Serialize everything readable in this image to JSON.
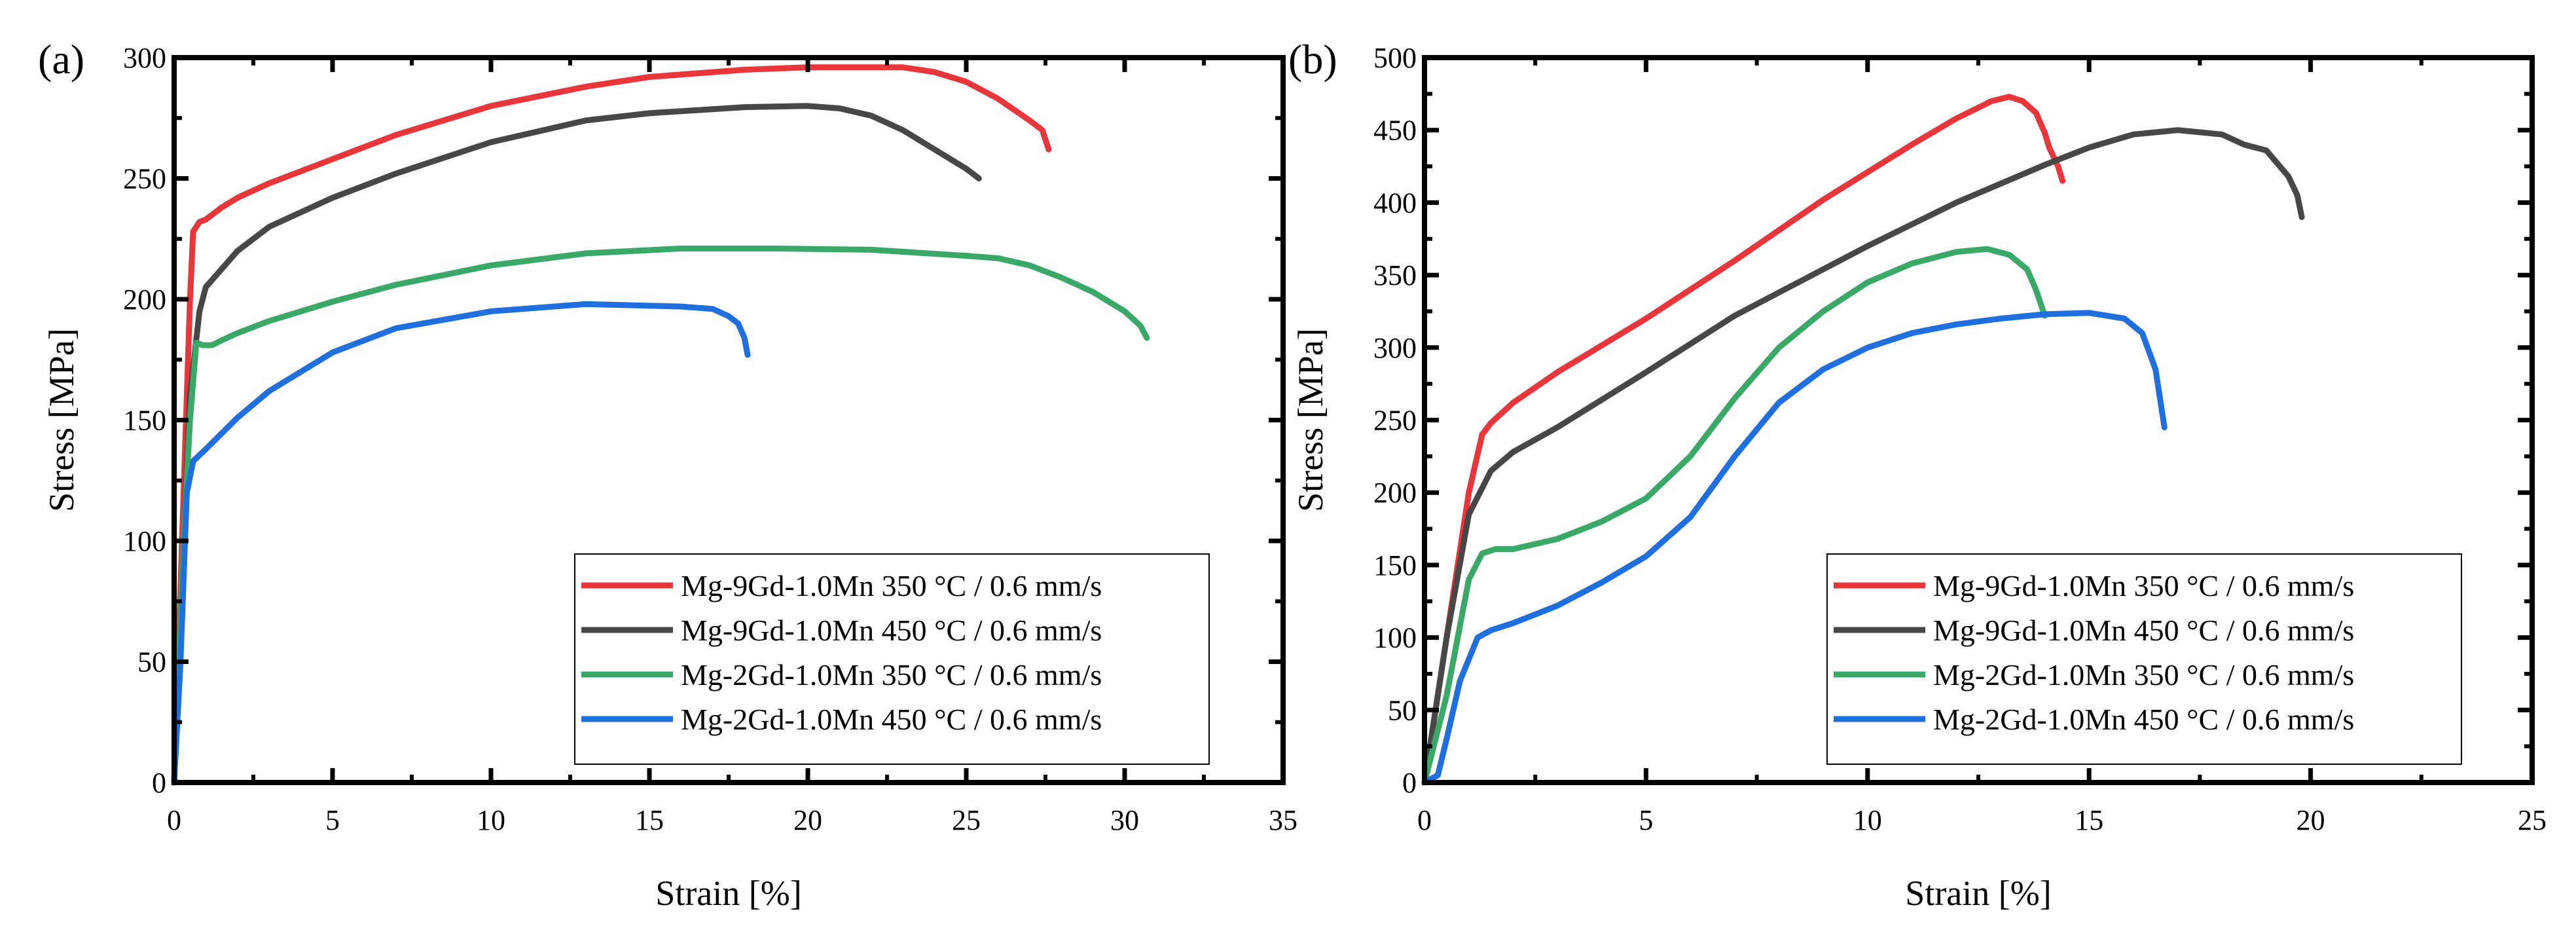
{
  "chart_data": [
    {
      "type": "line",
      "panel_label": "(a)",
      "xlabel": "Strain [%]",
      "ylabel": "Stress [MPa]",
      "xlim": [
        0,
        35
      ],
      "ylim": [
        0,
        300
      ],
      "xticks": [
        0,
        5,
        10,
        15,
        20,
        25,
        30,
        35
      ],
      "yticks": [
        0,
        50,
        100,
        150,
        200,
        250,
        300
      ],
      "grid": false,
      "legend_position": "bottom-right",
      "series": [
        {
          "name": "Mg-9Gd-1.0Mn 350 °C / 0.6 mm/s",
          "color": "#e8363a",
          "points": [
            [
              0,
              0
            ],
            [
              0.3,
              120
            ],
            [
              0.5,
              200
            ],
            [
              0.6,
              228
            ],
            [
              0.8,
              232
            ],
            [
              1,
              233
            ],
            [
              1.5,
              238
            ],
            [
              2,
              242
            ],
            [
              3,
              248
            ],
            [
              5,
              258
            ],
            [
              7,
              268
            ],
            [
              10,
              280
            ],
            [
              13,
              288
            ],
            [
              15,
              292
            ],
            [
              18,
              295
            ],
            [
              20,
              296
            ],
            [
              22,
              296
            ],
            [
              23,
              296
            ],
            [
              24,
              294
            ],
            [
              25,
              290
            ],
            [
              26,
              283
            ],
            [
              27,
              274
            ],
            [
              27.4,
              270
            ],
            [
              27.6,
              262
            ]
          ]
        },
        {
          "name": "Mg-9Gd-1.0Mn 450 °C / 0.6 mm/s",
          "color": "#474747",
          "points": [
            [
              0,
              0
            ],
            [
              0.3,
              100
            ],
            [
              0.5,
              160
            ],
            [
              0.8,
              195
            ],
            [
              1,
              205
            ],
            [
              2,
              220
            ],
            [
              3,
              230
            ],
            [
              5,
              242
            ],
            [
              7,
              252
            ],
            [
              10,
              265
            ],
            [
              13,
              274
            ],
            [
              15,
              277
            ],
            [
              18,
              279.5
            ],
            [
              20,
              280
            ],
            [
              21,
              279
            ],
            [
              22,
              276
            ],
            [
              23,
              270
            ],
            [
              24,
              262
            ],
            [
              25,
              254
            ],
            [
              25.4,
              250
            ]
          ]
        },
        {
          "name": "Mg-2Gd-1.0Mn 350 °C / 0.6 mm/s",
          "color": "#3aa866",
          "points": [
            [
              0,
              0
            ],
            [
              0.3,
              100
            ],
            [
              0.5,
              150
            ],
            [
              0.7,
              182
            ],
            [
              0.9,
              181
            ],
            [
              1.2,
              181
            ],
            [
              1.5,
              183
            ],
            [
              2,
              186
            ],
            [
              3,
              191
            ],
            [
              5,
              199
            ],
            [
              7,
              206
            ],
            [
              10,
              214
            ],
            [
              13,
              219
            ],
            [
              16,
              221
            ],
            [
              19,
              221
            ],
            [
              22,
              220.5
            ],
            [
              25,
              218
            ],
            [
              26,
              217
            ],
            [
              27,
              214
            ],
            [
              28,
              209
            ],
            [
              29,
              203
            ],
            [
              30,
              195
            ],
            [
              30.5,
              189
            ],
            [
              30.7,
              184
            ]
          ]
        },
        {
          "name": "Mg-2Gd-1.0Mn 450 °C / 0.6 mm/s",
          "color": "#1f6fde",
          "points": [
            [
              0,
              0
            ],
            [
              0.2,
              50
            ],
            [
              0.4,
              120
            ],
            [
              0.6,
              133
            ],
            [
              1,
              138
            ],
            [
              2,
              151
            ],
            [
              3,
              162
            ],
            [
              5,
              178
            ],
            [
              7,
              188
            ],
            [
              10,
              195
            ],
            [
              13,
              198
            ],
            [
              16,
              197
            ],
            [
              17,
              196
            ],
            [
              17.5,
              193
            ],
            [
              17.8,
              190
            ],
            [
              18,
              184
            ],
            [
              18.1,
              177
            ]
          ]
        }
      ]
    },
    {
      "type": "line",
      "panel_label": "(b)",
      "xlabel": "Strain [%]",
      "ylabel": "Stress [MPa]",
      "xlim": [
        0,
        25
      ],
      "ylim": [
        0,
        500
      ],
      "xticks": [
        0,
        5,
        10,
        15,
        20,
        25
      ],
      "yticks": [
        0,
        50,
        100,
        150,
        200,
        250,
        300,
        350,
        400,
        450,
        500
      ],
      "grid": false,
      "legend_position": "bottom-right",
      "series": [
        {
          "name": "Mg-9Gd-1.0Mn 350 °C / 0.6 mm/s",
          "color": "#e8363a",
          "points": [
            [
              0,
              0
            ],
            [
              0.5,
              100
            ],
            [
              1,
              200
            ],
            [
              1.3,
              240
            ],
            [
              1.5,
              248
            ],
            [
              2,
              262
            ],
            [
              3,
              283
            ],
            [
              5,
              320
            ],
            [
              7,
              360
            ],
            [
              9,
              402
            ],
            [
              11,
              440
            ],
            [
              12,
              458
            ],
            [
              12.8,
              470
            ],
            [
              13.2,
              473
            ],
            [
              13.5,
              470
            ],
            [
              13.8,
              462
            ],
            [
              14,
              448
            ],
            [
              14.1,
              438
            ],
            [
              14.3,
              425
            ],
            [
              14.4,
              415
            ]
          ]
        },
        {
          "name": "Mg-9Gd-1.0Mn 450 °C / 0.6 mm/s",
          "color": "#474747",
          "points": [
            [
              0,
              0
            ],
            [
              0.5,
              100
            ],
            [
              1,
              185
            ],
            [
              1.5,
              215
            ],
            [
              2,
              228
            ],
            [
              3,
              245
            ],
            [
              5,
              283
            ],
            [
              7,
              322
            ],
            [
              10,
              370
            ],
            [
              12,
              400
            ],
            [
              14,
              426
            ],
            [
              15,
              438
            ],
            [
              16,
              447
            ],
            [
              17,
              450
            ],
            [
              18,
              447
            ],
            [
              18.5,
              440
            ],
            [
              19,
              436
            ],
            [
              19.5,
              418
            ],
            [
              19.7,
              405
            ],
            [
              19.8,
              390
            ]
          ]
        },
        {
          "name": "Mg-2Gd-1.0Mn 350 °C / 0.6 mm/s",
          "color": "#3aa866",
          "points": [
            [
              0,
              0
            ],
            [
              0.5,
              60
            ],
            [
              1,
              140
            ],
            [
              1.3,
              158
            ],
            [
              1.6,
              161
            ],
            [
              2,
              161
            ],
            [
              3,
              168
            ],
            [
              4,
              180
            ],
            [
              5,
              196
            ],
            [
              6,
              225
            ],
            [
              7,
              265
            ],
            [
              8,
              300
            ],
            [
              9,
              325
            ],
            [
              10,
              345
            ],
            [
              11,
              358
            ],
            [
              12,
              366
            ],
            [
              12.7,
              368
            ],
            [
              13.2,
              364
            ],
            [
              13.6,
              354
            ],
            [
              13.8,
              340
            ],
            [
              14,
              322
            ]
          ]
        },
        {
          "name": "Mg-2Gd-1.0Mn 450 °C / 0.6 mm/s",
          "color": "#1f6fde",
          "points": [
            [
              0,
              0
            ],
            [
              0.3,
              5
            ],
            [
              0.5,
              30
            ],
            [
              0.8,
              70
            ],
            [
              1.2,
              100
            ],
            [
              1.5,
              105
            ],
            [
              2,
              110
            ],
            [
              3,
              122
            ],
            [
              4,
              138
            ],
            [
              5,
              156
            ],
            [
              6,
              183
            ],
            [
              7,
              225
            ],
            [
              8,
              262
            ],
            [
              9,
              285
            ],
            [
              10,
              300
            ],
            [
              11,
              310
            ],
            [
              12,
              316
            ],
            [
              13,
              320
            ],
            [
              14,
              323
            ],
            [
              15,
              324
            ],
            [
              15.8,
              320
            ],
            [
              16.2,
              310
            ],
            [
              16.5,
              285
            ],
            [
              16.6,
              265
            ],
            [
              16.7,
              245
            ]
          ]
        }
      ]
    }
  ]
}
